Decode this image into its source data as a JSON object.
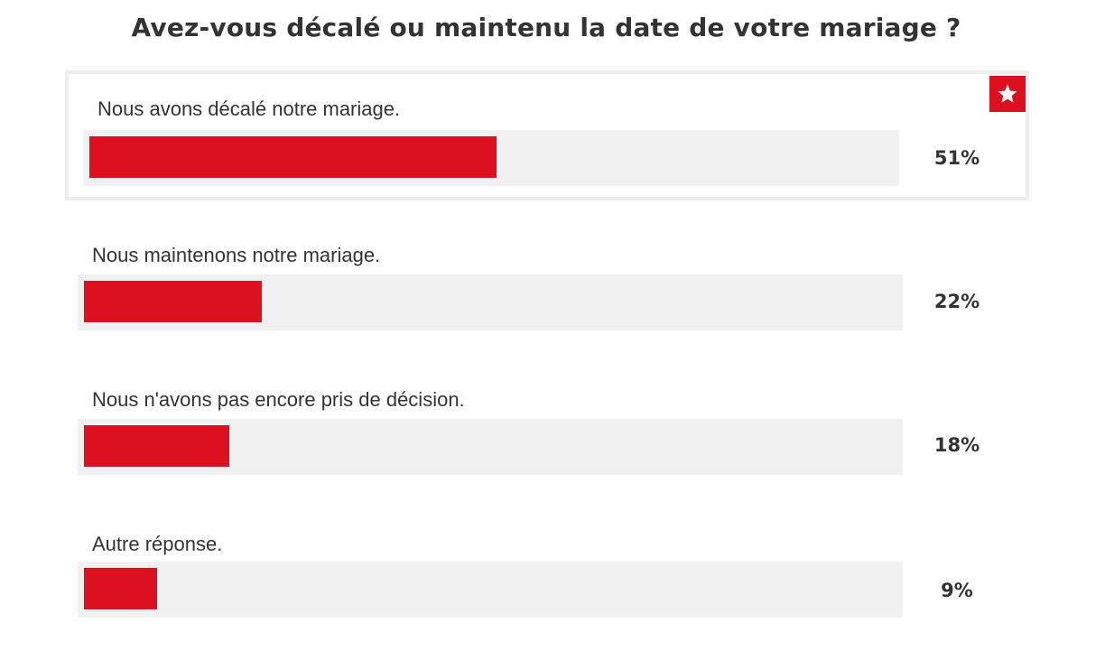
{
  "chart_data": {
    "type": "bar",
    "title": "Avez-vous décalé ou maintenu la date de votre mariage ?",
    "orientation": "horizontal",
    "categories": [
      "Nous avons décalé notre mariage.",
      "Nous maintenons notre mariage.",
      "Nous n'avons pas encore pris de décision.",
      "Autre réponse."
    ],
    "values": [
      51,
      22,
      18,
      9
    ],
    "value_labels": [
      "51%",
      "22%",
      "18%",
      "9%"
    ],
    "unit": "%",
    "xlim": [
      0,
      100
    ],
    "highlighted_index": 0,
    "highlight_icon": "star-icon",
    "grid": false
  },
  "colors": {
    "bar": "#dc1020",
    "track": "#f1f1f1",
    "text": "#333333",
    "winner_border": "#eeeeee"
  }
}
